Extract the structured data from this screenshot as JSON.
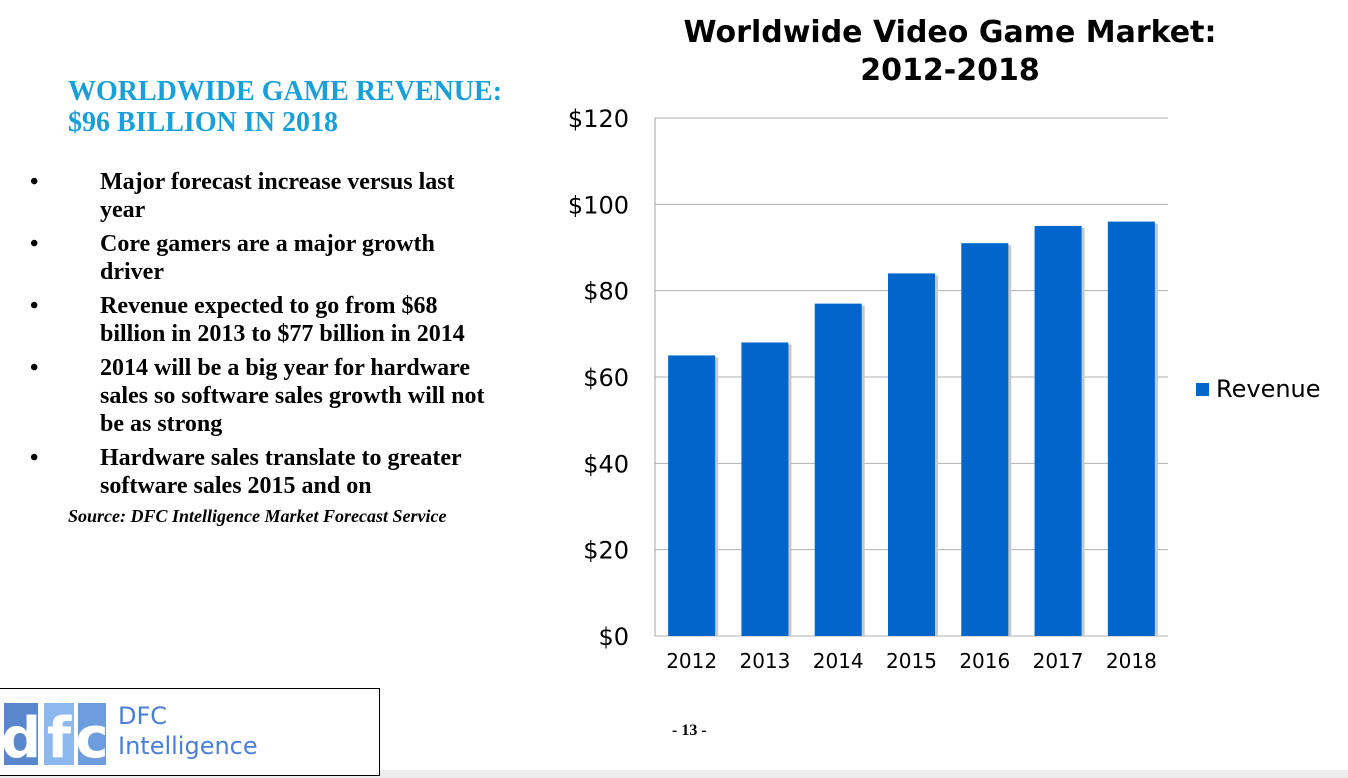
{
  "left": {
    "heading": [
      "WORLDWIDE GAME REVENUE:",
      "$96 BILLION IN 2018"
    ],
    "bullet_symbol": "•",
    "bullets": [
      [
        "Major forecast increase versus last",
        "year"
      ],
      [
        "Core gamers are a major growth",
        "driver"
      ],
      [
        "Revenue expected to go from $68",
        "billion in 2013 to $77 billion in 2014"
      ],
      [
        "2014 will be a big year for hardware",
        "sales so software sales growth will not",
        "be as strong"
      ],
      [
        "Hardware sales translate to greater",
        "software sales 2015 and on"
      ]
    ],
    "source": "Source: DFC Intelligence Market Forecast Service"
  },
  "logo": {
    "name_line1": "DFC",
    "name_line2": "Intelligence",
    "mark_letters": "dfc"
  },
  "page_number": "- 13 -",
  "colors": {
    "heading": "#1aa0d8",
    "bar": "#0066cc",
    "logo_dark": "#3f6fbf",
    "logo_light": "#7fb2ea"
  },
  "chart_data": {
    "type": "bar",
    "title": [
      "Worldwide Video Game Market:",
      "2012-2018"
    ],
    "categories": [
      "2012",
      "2013",
      "2014",
      "2015",
      "2016",
      "2017",
      "2018"
    ],
    "series": [
      {
        "name": "Revenue",
        "values": [
          65,
          68,
          77,
          84,
          91,
          95,
          96
        ]
      }
    ],
    "ylim": [
      0,
      120
    ],
    "yticks": [
      "$0",
      "$20",
      "$40",
      "$60",
      "$80",
      "$100",
      "$120"
    ],
    "grid": true,
    "legend": "right"
  }
}
